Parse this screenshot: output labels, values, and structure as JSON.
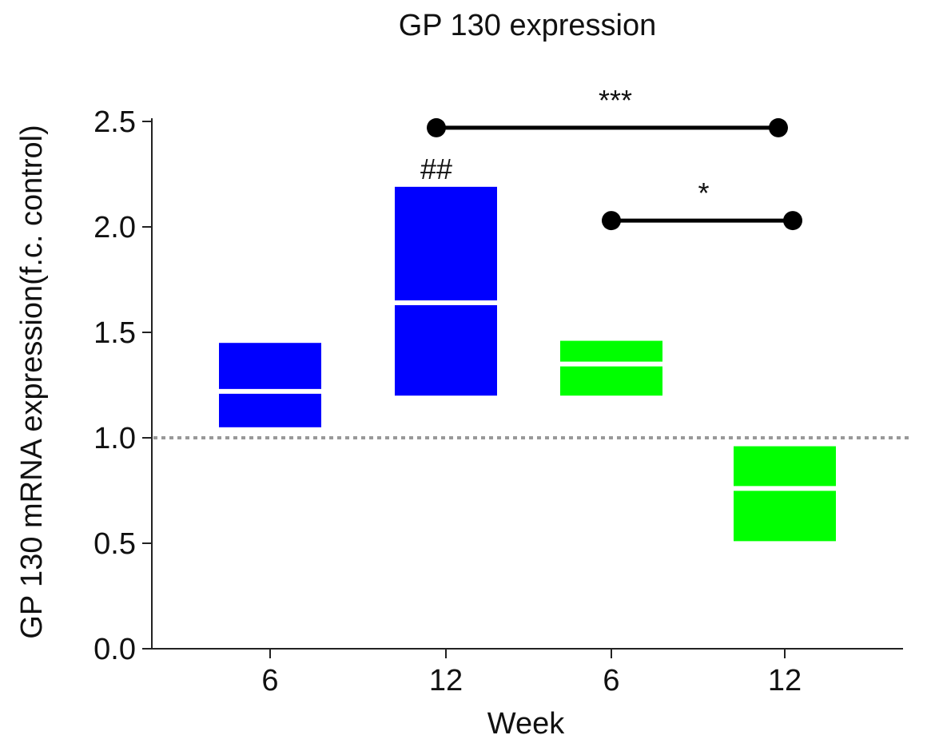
{
  "chart_data": {
    "type": "box",
    "title": "GP 130 expression",
    "xlabel": "Week",
    "ylabel": "GP 130 mRNA expression(f.c. control)",
    "ylim": [
      0,
      2.5
    ],
    "yticks": [
      "0.0",
      "0.5",
      "1.0",
      "1.5",
      "2.0",
      "2.5"
    ],
    "categories": [
      "6",
      "12",
      "6",
      "12"
    ],
    "colors": [
      "#0000ff",
      "#0000ff",
      "#00ff00",
      "#00ff00"
    ],
    "boxes": [
      {
        "low": 1.05,
        "median": 1.22,
        "high": 1.45
      },
      {
        "low": 1.2,
        "median": 1.64,
        "high": 2.19
      },
      {
        "low": 1.2,
        "median": 1.35,
        "high": 1.46
      },
      {
        "low": 0.51,
        "median": 0.76,
        "high": 0.96
      }
    ],
    "reference_line": {
      "y": 1.0,
      "style": "dotted",
      "color": "#999999"
    },
    "box_annotations": [
      {
        "box": 1,
        "text": "##"
      }
    ],
    "significance": [
      {
        "from": 1,
        "to": 3,
        "y": 2.47,
        "text": "***"
      },
      {
        "from": 2,
        "to": 3,
        "y": 2.03,
        "text": "*"
      }
    ]
  }
}
